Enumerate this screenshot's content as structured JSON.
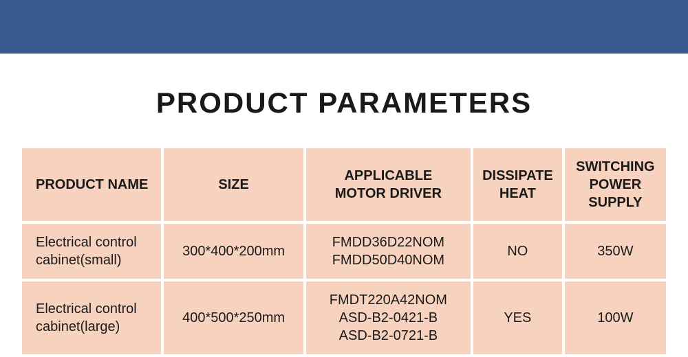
{
  "colors": {
    "band": "#385a8f",
    "cell_bg": "#f7d2be",
    "text": "#1a1a1a",
    "page_bg": "#ffffff"
  },
  "title": "PRODUCT PARAMETERS",
  "table": {
    "columns": [
      {
        "label": "PRODUCT NAME",
        "width_pct": 22,
        "align": "left"
      },
      {
        "label": "SIZE",
        "width_pct": 22,
        "align": "center"
      },
      {
        "label_line1": "APPLICABLE",
        "label_line2": "MOTOR DRIVER",
        "width_pct": 26,
        "align": "center"
      },
      {
        "label_line1": "DISSIPATE",
        "label_line2": "HEAT",
        "width_pct": 14,
        "align": "center"
      },
      {
        "label_line1": "SWITCHING",
        "label_line2": "POWER SUPPLY",
        "width_pct": 16,
        "align": "center"
      }
    ],
    "rows": [
      {
        "name_line1": "Electrical control",
        "name_line2": "cabinet(small)",
        "size": "300*400*200mm",
        "driver_line1": "FMDD36D22NOM",
        "driver_line2": "FMDD50D40NOM",
        "driver_line3": "",
        "heat": "NO",
        "power": "350W"
      },
      {
        "name_line1": "Electrical control",
        "name_line2": "cabinet(large)",
        "size": "400*500*250mm",
        "driver_line1": "FMDT220A42NOM",
        "driver_line2": "ASD-B2-0421-B",
        "driver_line3": "ASD-B2-0721-B",
        "heat": "YES",
        "power": "100W"
      }
    ]
  }
}
